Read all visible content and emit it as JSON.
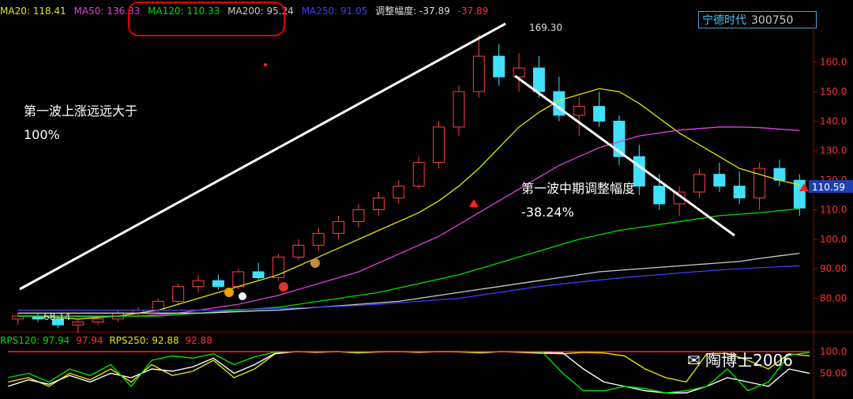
{
  "legend": {
    "ma20": "MA20: 118.41",
    "ma50": "MA50: 136.83",
    "ma120": "MA120: 110.33",
    "ma200": "MA200: 95.24",
    "ma250": "MA250: 91.05",
    "amp": "调整幅度: -37.89",
    "amp2": "-37.89"
  },
  "stock": {
    "name": "宁德时代",
    "code": "300750"
  },
  "annotations": {
    "first_wave_l1": "第一波上涨远远大于",
    "first_wave_l2": "100%",
    "mid_adj_l1": "第一波中期调整幅度",
    "mid_adj_l2": "-38.24%",
    "high_label": "169.30",
    "low_label": "68.14",
    "price_tag": "110.59"
  },
  "lower_legend": {
    "rps120": "RPS120: 97.94",
    "rps120b": "97.94",
    "rps250": "RPS250: 92.88",
    "rps250b": "92.88"
  },
  "watermark": "陶博士2006",
  "colors": {
    "ma20": "#e6e600",
    "ma50": "#e040e0",
    "ma120": "#00e000",
    "ma200": "#cccccc",
    "ma250": "#3d3dff",
    "up": "#ff4040",
    "down": "#40e0ff",
    "axis": "#c00000",
    "tick": "#ff3030"
  },
  "chart_data": {
    "type": "candlestick",
    "yticks": [
      "160.0",
      "150.0",
      "140.0",
      "130.0",
      "120.0",
      "110.0",
      "100.0",
      "90.00",
      "80.00"
    ],
    "ylim": [
      70,
      173
    ],
    "lower_yticks": [
      "100.0",
      "50.00"
    ],
    "ohlc_sample": [
      [
        73,
        75,
        71,
        74
      ],
      [
        74,
        75,
        72,
        73
      ],
      [
        73,
        74,
        70,
        71
      ],
      [
        71,
        73,
        68.14,
        72
      ],
      [
        72,
        74,
        71,
        73
      ],
      [
        73,
        76,
        72,
        75
      ],
      [
        75,
        77,
        74,
        76
      ],
      [
        76,
        80,
        75,
        79
      ],
      [
        79,
        85,
        78,
        84
      ],
      [
        84,
        88,
        82,
        86
      ],
      [
        86,
        88,
        83,
        84
      ],
      [
        84,
        90,
        83,
        89
      ],
      [
        89,
        92,
        86,
        87
      ],
      [
        87,
        95,
        86,
        94
      ],
      [
        94,
        100,
        93,
        98
      ],
      [
        98,
        104,
        96,
        102
      ],
      [
        102,
        108,
        100,
        106
      ],
      [
        106,
        112,
        104,
        110
      ],
      [
        110,
        116,
        108,
        114
      ],
      [
        114,
        120,
        112,
        118
      ],
      [
        118,
        128,
        117,
        126
      ],
      [
        126,
        140,
        124,
        138
      ],
      [
        138,
        152,
        135,
        150
      ],
      [
        150,
        169.3,
        148,
        162
      ],
      [
        162,
        166,
        152,
        155
      ],
      [
        155,
        163,
        150,
        158
      ],
      [
        158,
        162,
        148,
        150
      ],
      [
        150,
        155,
        140,
        142
      ],
      [
        142,
        148,
        135,
        145
      ],
      [
        145,
        150,
        138,
        140
      ],
      [
        140,
        142,
        125,
        128
      ],
      [
        128,
        132,
        115,
        118
      ],
      [
        118,
        122,
        110,
        112
      ],
      [
        112,
        118,
        108,
        116
      ],
      [
        116,
        124,
        114,
        122
      ],
      [
        122,
        126,
        116,
        118
      ],
      [
        118,
        123,
        112,
        114
      ],
      [
        114,
        126,
        110,
        124
      ],
      [
        124,
        127,
        118,
        120
      ],
      [
        120,
        122,
        108,
        110.59
      ]
    ],
    "ma": {
      "MA20": [
        74,
        74,
        73.5,
        73,
        73.5,
        74,
        75,
        76,
        78,
        80,
        82,
        84,
        86,
        88,
        91,
        94,
        97,
        100,
        103,
        106,
        109,
        113,
        118,
        124,
        131,
        138,
        143,
        147,
        149,
        151,
        150,
        146,
        141,
        136,
        132,
        128,
        124,
        122,
        120,
        118.41
      ],
      "MA50": [
        74,
        74,
        74,
        73.8,
        73.8,
        74,
        74,
        74.5,
        75,
        76,
        77,
        78,
        79.5,
        81,
        83,
        85,
        87,
        89,
        92,
        95,
        98,
        101,
        105,
        109,
        113,
        117,
        121,
        125,
        128,
        131,
        133,
        135,
        136,
        137,
        137.5,
        138,
        138,
        137.8,
        137.3,
        136.83
      ],
      "MA120": [
        74,
        74,
        74,
        74,
        74,
        74,
        74,
        74,
        74.5,
        75,
        75.5,
        76,
        76.5,
        77,
        78,
        79,
        80,
        81,
        82,
        83.5,
        85,
        86.5,
        88,
        90,
        92,
        94,
        96,
        98,
        100,
        101.5,
        103,
        104,
        105,
        106,
        107,
        108,
        108.5,
        109,
        109.7,
        110.33
      ],
      "MA200": [
        75,
        75,
        75,
        75,
        75,
        75,
        75,
        75,
        75,
        75,
        75.2,
        75.5,
        75.8,
        76,
        76.5,
        77,
        77.5,
        78,
        78.5,
        79,
        80,
        81,
        82,
        83,
        84,
        85,
        86,
        87,
        88,
        89,
        89.5,
        90,
        90.5,
        91,
        91.5,
        92,
        92.5,
        93.5,
        94.4,
        95.24
      ],
      "MA250": [
        76,
        76,
        76,
        76,
        76,
        76,
        76,
        76,
        76,
        76,
        76,
        76.2,
        76.4,
        76.6,
        76.8,
        77,
        77.3,
        77.6,
        78,
        78.5,
        79,
        79.5,
        80,
        81,
        82,
        83,
        84,
        84.8,
        85.5,
        86.2,
        86.9,
        87.5,
        88,
        88.6,
        89.1,
        89.6,
        90,
        90.4,
        90.7,
        91.05
      ]
    }
  }
}
